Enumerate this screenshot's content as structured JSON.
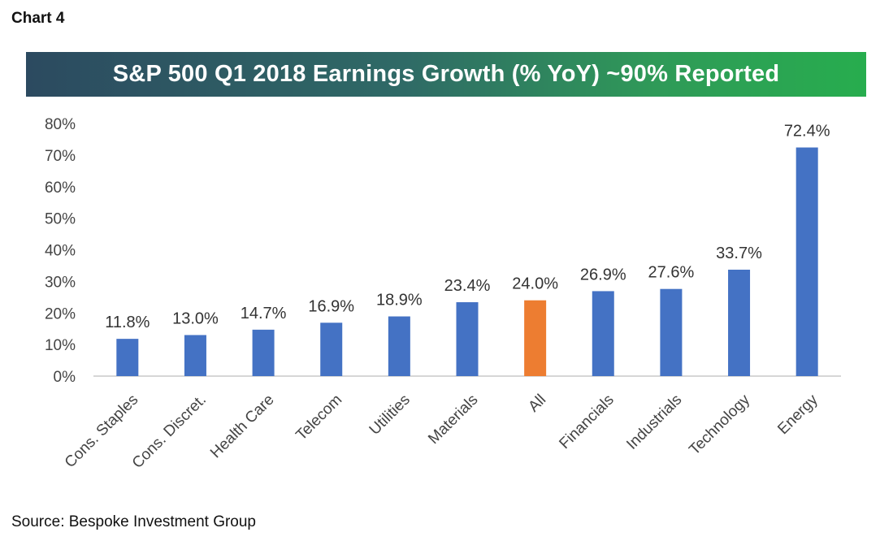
{
  "header": {
    "chart_label": "Chart 4"
  },
  "footer": {
    "source": "Source: Bespoke Investment Group"
  },
  "colors": {
    "bar": "#4472C4",
    "highlight_bar": "#ED7D31",
    "title_banner_start": "#2c4a60",
    "title_banner_end": "#27ad4e"
  },
  "chart_data": {
    "type": "bar",
    "title": "S&P 500 Q1 2018 Earnings Growth (% YoY) ~90% Reported",
    "xlabel": "",
    "ylabel": "",
    "ylim": [
      0,
      80
    ],
    "yticks": [
      0,
      10,
      20,
      30,
      40,
      50,
      60,
      70,
      80
    ],
    "ytick_labels": [
      "0%",
      "10%",
      "20%",
      "30%",
      "40%",
      "50%",
      "60%",
      "70%",
      "80%"
    ],
    "grid": false,
    "legend": "none",
    "categories": [
      "Cons. Staples",
      "Cons. Discret.",
      "Health Care",
      "Telecom",
      "Utilities",
      "Materials",
      "All",
      "Financials",
      "Industrials",
      "Technology",
      "Energy"
    ],
    "values": [
      11.8,
      13.0,
      14.7,
      16.9,
      18.9,
      23.4,
      24.0,
      26.9,
      27.6,
      33.7,
      72.4
    ],
    "data_labels": [
      "11.8%",
      "13.0%",
      "14.7%",
      "16.9%",
      "18.9%",
      "23.4%",
      "24.0%",
      "26.9%",
      "27.6%",
      "33.7%",
      "72.4%"
    ],
    "highlight_category": "All"
  }
}
